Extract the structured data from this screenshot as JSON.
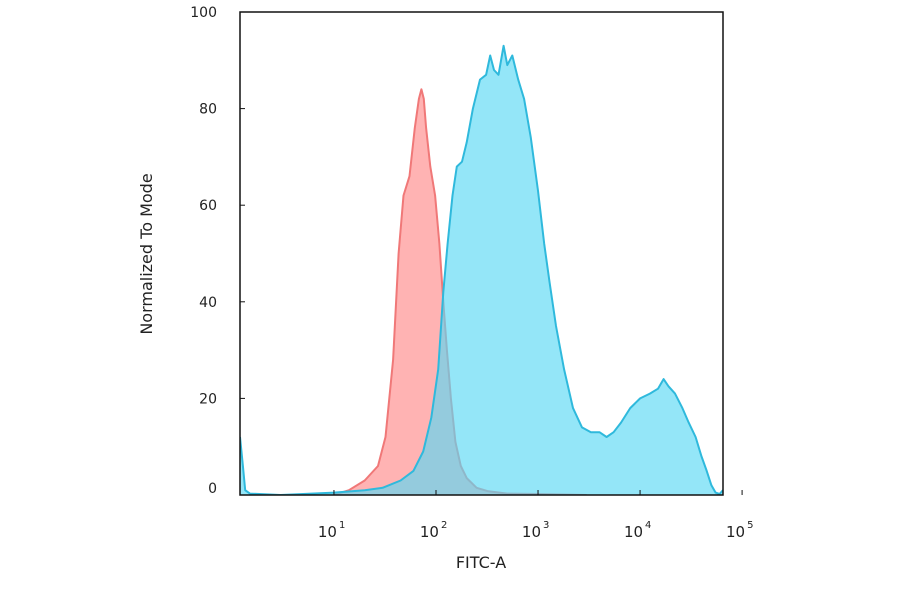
{
  "chart_data": {
    "type": "area",
    "xlabel": "FITC-A",
    "ylabel": "Normalized To Mode",
    "xscale": "log",
    "xlim": [
      1.2,
      65000
    ],
    "ylim": [
      0,
      100
    ],
    "yticks": [
      "0",
      "20",
      "40",
      "60",
      "80",
      "100"
    ],
    "xticks": [
      {
        "base": "10",
        "exp": "1"
      },
      {
        "base": "10",
        "exp": "2"
      },
      {
        "base": "10",
        "exp": "3"
      },
      {
        "base": "10",
        "exp": "4"
      },
      {
        "base": "10",
        "exp": "5"
      }
    ],
    "series": [
      {
        "color": "#f07878",
        "fill": "#ff8b8b",
        "points": [
          [
            10,
            0
          ],
          [
            14,
            1
          ],
          [
            20,
            3
          ],
          [
            27,
            6
          ],
          [
            32,
            12
          ],
          [
            38,
            28
          ],
          [
            43,
            50
          ],
          [
            48,
            62
          ],
          [
            55,
            66
          ],
          [
            62,
            76
          ],
          [
            68,
            82
          ],
          [
            72,
            84
          ],
          [
            76,
            82
          ],
          [
            80,
            76
          ],
          [
            88,
            68
          ],
          [
            98,
            62
          ],
          [
            108,
            52
          ],
          [
            118,
            40
          ],
          [
            128,
            30
          ],
          [
            140,
            20
          ],
          [
            155,
            11
          ],
          [
            175,
            6
          ],
          [
            200,
            3.5
          ],
          [
            250,
            1.5
          ],
          [
            320,
            0.8
          ],
          [
            500,
            0.3
          ],
          [
            1000,
            0.2
          ],
          [
            3000,
            0
          ]
        ]
      },
      {
        "color": "#2fb9dc",
        "fill": "#5ad8f5",
        "points": [
          [
            1.2,
            12
          ],
          [
            1.28,
            6
          ],
          [
            1.35,
            1
          ],
          [
            1.5,
            0.3
          ],
          [
            3,
            0
          ],
          [
            10,
            0.5
          ],
          [
            20,
            1
          ],
          [
            30,
            1.5
          ],
          [
            45,
            3
          ],
          [
            60,
            5
          ],
          [
            75,
            9
          ],
          [
            90,
            16
          ],
          [
            105,
            26
          ],
          [
            118,
            42
          ],
          [
            130,
            52
          ],
          [
            145,
            62
          ],
          [
            160,
            68
          ],
          [
            180,
            69
          ],
          [
            200,
            73
          ],
          [
            230,
            80
          ],
          [
            270,
            86
          ],
          [
            310,
            87
          ],
          [
            340,
            91
          ],
          [
            370,
            88
          ],
          [
            410,
            87
          ],
          [
            460,
            93
          ],
          [
            500,
            89
          ],
          [
            560,
            91
          ],
          [
            640,
            86
          ],
          [
            730,
            82
          ],
          [
            850,
            74
          ],
          [
            1000,
            63
          ],
          [
            1150,
            52
          ],
          [
            1300,
            44
          ],
          [
            1500,
            35
          ],
          [
            1800,
            26
          ],
          [
            2200,
            18
          ],
          [
            2700,
            14
          ],
          [
            3300,
            13
          ],
          [
            4000,
            13
          ],
          [
            4700,
            12
          ],
          [
            5500,
            13
          ],
          [
            6500,
            15
          ],
          [
            8000,
            18
          ],
          [
            10000,
            20
          ],
          [
            12500,
            21
          ],
          [
            15000,
            22
          ],
          [
            17000,
            24
          ],
          [
            19000,
            22.5
          ],
          [
            22000,
            21
          ],
          [
            26000,
            18
          ],
          [
            30000,
            15
          ],
          [
            35000,
            12
          ],
          [
            40000,
            8
          ],
          [
            45000,
            5
          ],
          [
            50000,
            2
          ],
          [
            55000,
            0.5
          ],
          [
            60000,
            0.2
          ],
          [
            65000,
            1
          ]
        ]
      }
    ]
  }
}
